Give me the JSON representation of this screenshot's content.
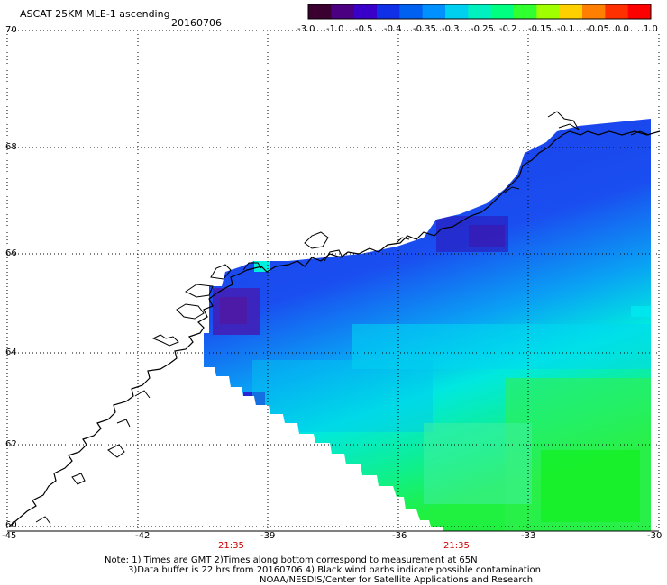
{
  "header": {
    "title": "ASCAT 25KM MLE-1 ascending",
    "date": "20160706"
  },
  "colorbar": {
    "labels": [
      "-3.0",
      "-1.0",
      "-0.5",
      "-0.4",
      "-0.35",
      "-0.3",
      "-0.25",
      "-0.2",
      "-0.15",
      "-0.1",
      "-0.05",
      "0.0",
      "1.0"
    ],
    "colors": [
      "#3a0030",
      "#4a0080",
      "#3800c8",
      "#1030e8",
      "#0060f0",
      "#0090ff",
      "#00d0f0",
      "#00f0c0",
      "#00ff80",
      "#30ff30",
      "#a0ff00",
      "#ffd000",
      "#ff8000",
      "#ff3000",
      "#ff0000"
    ]
  },
  "axes": {
    "lat_ticks": [
      "70",
      "68",
      "66",
      "64",
      "62",
      "60"
    ],
    "lon_ticks": [
      "-45",
      "-42",
      "-39",
      "-36",
      "-33",
      "-30"
    ],
    "times": [
      "21:35",
      "21:35"
    ]
  },
  "notes": {
    "line1": "Note: 1) Times are GMT 2)Times along bottom correspond to measurement at 65N",
    "line2": "3)Data buffer is 22 hrs from 20160706 4) Black wind barbs indicate possible contamination",
    "line3": "NOAA/NESDIS/Center for Satellite Applications and Research"
  }
}
